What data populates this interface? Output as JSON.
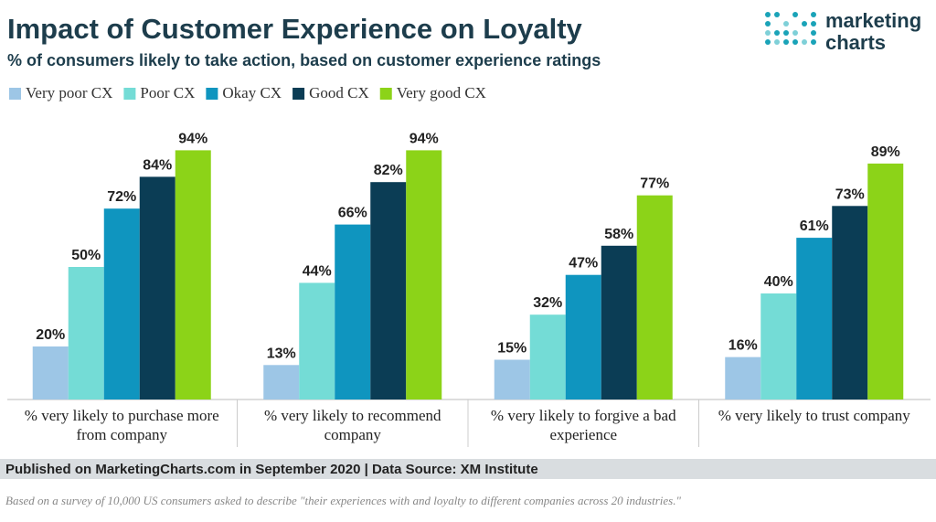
{
  "chart_data": {
    "type": "bar",
    "title": "Impact of Customer Experience on Loyalty",
    "subtitle": "% of consumers likely to take action, based on customer experience ratings",
    "categories": [
      "% very likely to purchase more from company",
      "% very likely to recommend company",
      "% very likely to forgive a bad experience",
      "% very likely to trust company"
    ],
    "series": [
      {
        "name": "Very poor CX",
        "color": "#9dc6e6",
        "values": [
          20,
          13,
          15,
          16
        ],
        "value_labels": [
          "20%",
          "13%",
          "15%",
          "16%"
        ]
      },
      {
        "name": "Poor CX",
        "color": "#74dcd6",
        "values": [
          50,
          44,
          32,
          40
        ],
        "value_labels": [
          "50%",
          "44%",
          "32%",
          "40%"
        ]
      },
      {
        "name": "Okay CX",
        "color": "#0f95bf",
        "values": [
          72,
          66,
          47,
          61
        ],
        "value_labels": [
          "72%",
          "66%",
          "47%",
          "61%"
        ]
      },
      {
        "name": "Good CX",
        "color": "#0b3d55",
        "values": [
          84,
          82,
          58,
          73
        ],
        "value_labels": [
          "84%",
          "82%",
          "58%",
          "73%"
        ]
      },
      {
        "name": "Very good CX",
        "color": "#8cd318",
        "values": [
          94,
          94,
          77,
          89
        ],
        "value_labels": [
          "94%",
          "94%",
          "77%",
          "89%"
        ]
      }
    ],
    "legend": "top-left"
  },
  "logo": [
    "marketing",
    "charts"
  ],
  "source": "Published on MarketingCharts.com in September 2020 | Data Source: XM Institute",
  "note": "Based on a survey of 10,000 US consumers asked to describe \"their experiences with and loyalty to different companies across 20 industries.\""
}
